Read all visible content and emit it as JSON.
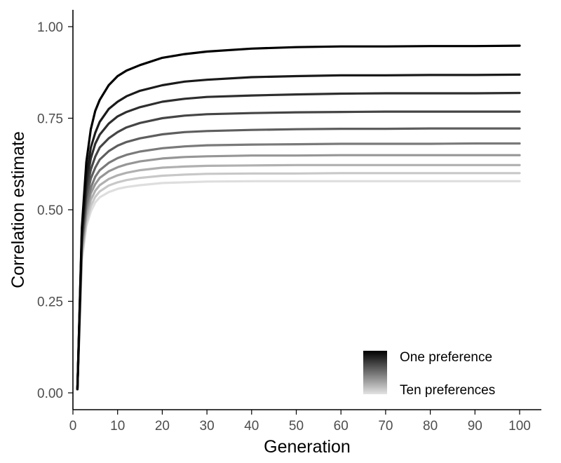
{
  "chart_data": {
    "type": "line",
    "title": "",
    "xlabel": "Generation",
    "ylabel": "Correlation estimate",
    "xlim": [
      0,
      100
    ],
    "ylim": [
      0,
      1
    ],
    "x_ticks": [
      0,
      10,
      20,
      30,
      40,
      50,
      60,
      70,
      80,
      90,
      100
    ],
    "y_ticks": [
      0.0,
      0.25,
      0.5,
      0.75,
      1.0
    ],
    "y_tick_labels": [
      "0.00",
      "0.25",
      "0.50",
      "0.75",
      "1.00"
    ],
    "x_tick_labels": [
      "0",
      "10",
      "20",
      "30",
      "40",
      "50",
      "60",
      "70",
      "80",
      "90",
      "100"
    ],
    "grid": false,
    "x": [
      1,
      2,
      3,
      4,
      5,
      6,
      8,
      10,
      12,
      15,
      20,
      25,
      30,
      40,
      50,
      60,
      70,
      80,
      90,
      100
    ],
    "series": [
      {
        "color": "#000000",
        "values": [
          0.01,
          0.45,
          0.63,
          0.72,
          0.77,
          0.8,
          0.84,
          0.865,
          0.88,
          0.895,
          0.915,
          0.925,
          0.932,
          0.94,
          0.944,
          0.946,
          0.946,
          0.947,
          0.947,
          0.948
        ]
      },
      {
        "color": "#1a1a1a",
        "values": [
          0.01,
          0.44,
          0.59,
          0.67,
          0.71,
          0.74,
          0.775,
          0.795,
          0.81,
          0.825,
          0.84,
          0.85,
          0.855,
          0.862,
          0.865,
          0.867,
          0.867,
          0.868,
          0.868,
          0.869
        ]
      },
      {
        "color": "#2e2e2e",
        "values": [
          0.01,
          0.43,
          0.57,
          0.64,
          0.68,
          0.705,
          0.735,
          0.755,
          0.767,
          0.78,
          0.795,
          0.803,
          0.808,
          0.812,
          0.815,
          0.817,
          0.818,
          0.818,
          0.818,
          0.819
        ]
      },
      {
        "color": "#454545",
        "values": [
          0.01,
          0.42,
          0.55,
          0.61,
          0.645,
          0.67,
          0.695,
          0.712,
          0.725,
          0.737,
          0.75,
          0.757,
          0.761,
          0.764,
          0.766,
          0.767,
          0.768,
          0.768,
          0.768,
          0.768
        ]
      },
      {
        "color": "#5e5e5e",
        "values": [
          0.01,
          0.41,
          0.53,
          0.585,
          0.615,
          0.637,
          0.66,
          0.675,
          0.685,
          0.695,
          0.706,
          0.712,
          0.715,
          0.718,
          0.72,
          0.721,
          0.721,
          0.722,
          0.722,
          0.722
        ]
      },
      {
        "color": "#7a7a7a",
        "values": [
          0.01,
          0.4,
          0.51,
          0.56,
          0.59,
          0.608,
          0.628,
          0.641,
          0.65,
          0.659,
          0.668,
          0.673,
          0.676,
          0.678,
          0.679,
          0.68,
          0.68,
          0.68,
          0.681,
          0.681
        ]
      },
      {
        "color": "#969696",
        "values": [
          0.01,
          0.39,
          0.495,
          0.545,
          0.57,
          0.587,
          0.605,
          0.616,
          0.624,
          0.632,
          0.64,
          0.644,
          0.646,
          0.648,
          0.648,
          0.649,
          0.649,
          0.649,
          0.649,
          0.649
        ]
      },
      {
        "color": "#b0b0b0",
        "values": [
          0.01,
          0.38,
          0.48,
          0.527,
          0.552,
          0.567,
          0.584,
          0.594,
          0.601,
          0.608,
          0.615,
          0.618,
          0.62,
          0.621,
          0.622,
          0.622,
          0.622,
          0.622,
          0.622,
          0.622
        ]
      },
      {
        "color": "#c8c8c8",
        "values": [
          0.01,
          0.37,
          0.465,
          0.51,
          0.535,
          0.55,
          0.566,
          0.575,
          0.581,
          0.587,
          0.593,
          0.596,
          0.598,
          0.599,
          0.599,
          0.6,
          0.6,
          0.6,
          0.6,
          0.6
        ]
      },
      {
        "color": "#dedede",
        "values": [
          0.01,
          0.36,
          0.455,
          0.495,
          0.52,
          0.534,
          0.548,
          0.557,
          0.562,
          0.567,
          0.573,
          0.575,
          0.577,
          0.578,
          0.578,
          0.578,
          0.578,
          0.578,
          0.578,
          0.578
        ]
      }
    ],
    "legend": {
      "placement": "bottom-right",
      "type": "gradient",
      "color_start": "#000000",
      "color_end": "#e3e3e3",
      "label_top": "One preference",
      "label_bottom": "Ten preferences"
    }
  }
}
